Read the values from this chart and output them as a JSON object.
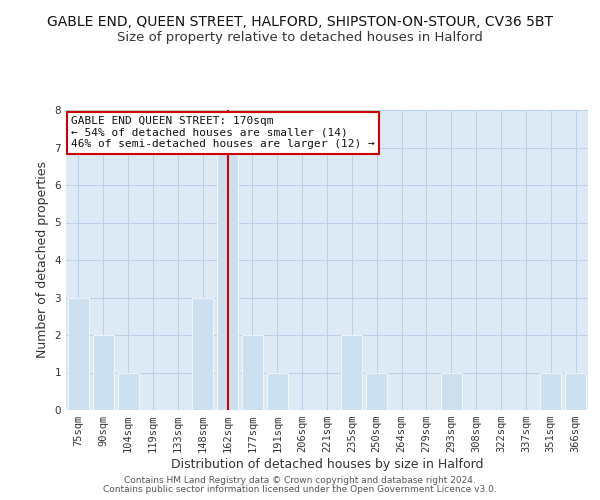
{
  "title": "GABLE END, QUEEN STREET, HALFORD, SHIPSTON-ON-STOUR, CV36 5BT",
  "subtitle": "Size of property relative to detached houses in Halford",
  "xlabel": "Distribution of detached houses by size in Halford",
  "ylabel": "Number of detached properties",
  "categories": [
    "75sqm",
    "90sqm",
    "104sqm",
    "119sqm",
    "133sqm",
    "148sqm",
    "162sqm",
    "177sqm",
    "191sqm",
    "206sqm",
    "221sqm",
    "235sqm",
    "250sqm",
    "264sqm",
    "279sqm",
    "293sqm",
    "308sqm",
    "322sqm",
    "337sqm",
    "351sqm",
    "366sqm"
  ],
  "values": [
    3,
    2,
    1,
    0,
    0,
    3,
    7,
    2,
    1,
    0,
    0,
    2,
    1,
    0,
    0,
    1,
    0,
    0,
    0,
    1,
    1
  ],
  "highlight_index": 6,
  "bar_color": "#cce0f0",
  "highlight_line_color": "#cc0000",
  "ylim": [
    0,
    8
  ],
  "yticks": [
    0,
    1,
    2,
    3,
    4,
    5,
    6,
    7,
    8
  ],
  "annotation_title": "GABLE END QUEEN STREET: 170sqm",
  "annotation_line1": "← 54% of detached houses are smaller (14)",
  "annotation_line2": "46% of semi-detached houses are larger (12) →",
  "footer1": "Contains HM Land Registry data © Crown copyright and database right 2024.",
  "footer2": "Contains public sector information licensed under the Open Government Licence v3.0.",
  "title_fontsize": 10,
  "subtitle_fontsize": 9.5,
  "axis_label_fontsize": 9,
  "tick_fontsize": 7.5,
  "annotation_fontsize": 8,
  "footer_fontsize": 6.5,
  "grid_color": "#b8d0e8",
  "bg_color": "#ddeaf5"
}
